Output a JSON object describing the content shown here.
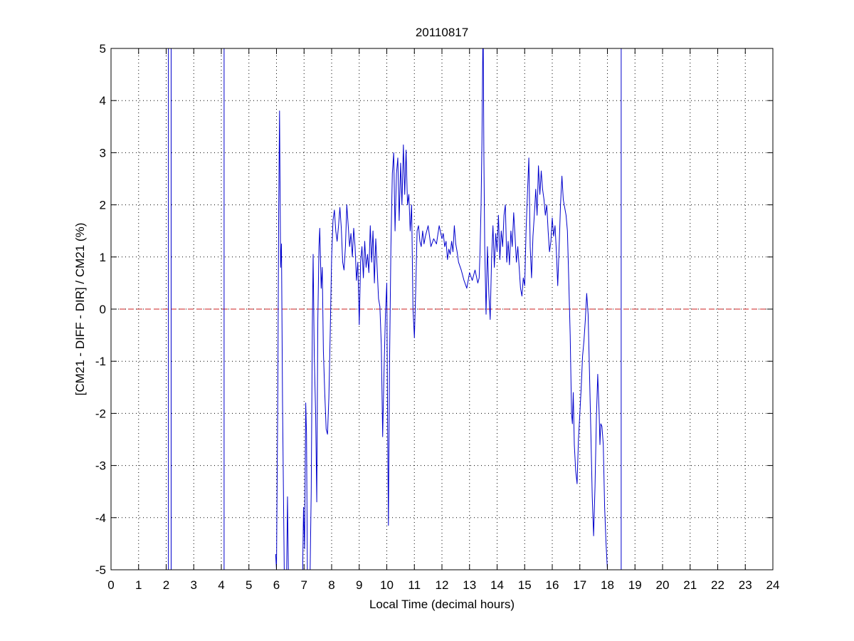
{
  "chart_data": {
    "type": "line",
    "title": "20110817",
    "xlabel": "Local Time (decimal hours)",
    "ylabel": "[CM21 - DIFF - DIR] / CM21 (%)",
    "xlim": [
      0,
      24
    ],
    "ylim": [
      -5,
      5
    ],
    "xticks": [
      "0",
      "1",
      "2",
      "3",
      "4",
      "5",
      "6",
      "7",
      "8",
      "9",
      "10",
      "11",
      "12",
      "13",
      "14",
      "15",
      "16",
      "17",
      "18",
      "19",
      "20",
      "21",
      "22",
      "23",
      "24"
    ],
    "yticks": [
      "5",
      "4",
      "3",
      "2",
      "1",
      "0",
      "-1",
      "-2",
      "-3",
      "-4",
      "-5"
    ],
    "grid": true,
    "grid_style": "dotted",
    "colors": {
      "series": "#0000cc",
      "reference": "#cc2222",
      "axes": "#000000",
      "grid": "#000000"
    },
    "reference_line": {
      "y": 0,
      "style": "dashed"
    },
    "vertical_spikes_x": [
      2.08,
      2.18,
      4.1,
      18.5
    ],
    "series": [
      {
        "points": [
          [
            5.97,
            -4.7
          ],
          [
            6.0,
            -5.0
          ],
          [
            6.05,
            -1.5
          ],
          [
            6.08,
            1.9
          ],
          [
            6.11,
            3.8
          ],
          [
            6.15,
            0.8
          ],
          [
            6.18,
            1.25
          ],
          [
            6.22,
            -1.8
          ],
          [
            6.28,
            -5.0
          ],
          [
            6.37,
            -5.0
          ],
          [
            6.4,
            -3.6
          ],
          [
            6.43,
            -5.0
          ],
          [
            6.95,
            -5.0
          ],
          [
            6.98,
            -3.8
          ],
          [
            7.02,
            -4.6
          ],
          [
            7.06,
            -1.8
          ],
          [
            7.09,
            -2.4
          ],
          [
            7.12,
            -5.0
          ],
          [
            7.22,
            -5.0
          ],
          [
            7.26,
            -3.5
          ],
          [
            7.3,
            -0.3
          ],
          [
            7.33,
            1.05
          ],
          [
            7.37,
            -0.9
          ],
          [
            7.42,
            -2.0
          ],
          [
            7.46,
            -3.7
          ],
          [
            7.5,
            -0.2
          ],
          [
            7.54,
            1.2
          ],
          [
            7.57,
            1.55
          ],
          [
            7.62,
            0.4
          ],
          [
            7.66,
            0.8
          ],
          [
            7.7,
            -0.8
          ],
          [
            7.75,
            -1.6
          ],
          [
            7.8,
            -2.3
          ],
          [
            7.85,
            -2.4
          ],
          [
            7.9,
            -1.7
          ],
          [
            7.95,
            -0.4
          ],
          [
            8.0,
            1.0
          ],
          [
            8.05,
            1.7
          ],
          [
            8.1,
            1.9
          ],
          [
            8.15,
            1.5
          ],
          [
            8.2,
            1.3
          ],
          [
            8.25,
            1.6
          ],
          [
            8.3,
            1.95
          ],
          [
            8.35,
            1.55
          ],
          [
            8.4,
            0.9
          ],
          [
            8.45,
            0.75
          ],
          [
            8.5,
            1.2
          ],
          [
            8.55,
            2.0
          ],
          [
            8.6,
            1.6
          ],
          [
            8.65,
            1.2
          ],
          [
            8.7,
            1.45
          ],
          [
            8.75,
            1.0
          ],
          [
            8.8,
            1.55
          ],
          [
            8.85,
            1.2
          ],
          [
            8.9,
            0.55
          ],
          [
            8.95,
            0.9
          ],
          [
            9.0,
            -0.3
          ],
          [
            9.05,
            0.9
          ],
          [
            9.1,
            1.2
          ],
          [
            9.15,
            0.6
          ],
          [
            9.2,
            1.3
          ],
          [
            9.25,
            0.8
          ],
          [
            9.3,
            1.05
          ],
          [
            9.35,
            0.7
          ],
          [
            9.4,
            1.6
          ],
          [
            9.45,
            0.9
          ],
          [
            9.5,
            1.5
          ],
          [
            9.55,
            0.5
          ],
          [
            9.6,
            1.35
          ],
          [
            9.65,
            0.8
          ],
          [
            9.7,
            0.2
          ],
          [
            9.75,
            0.05
          ],
          [
            9.8,
            -0.7
          ],
          [
            9.85,
            -2.45
          ],
          [
            9.9,
            -1.2
          ],
          [
            9.95,
            -0.1
          ],
          [
            10.0,
            0.5
          ],
          [
            10.03,
            -2.3
          ],
          [
            10.06,
            -4.15
          ],
          [
            10.1,
            -1.0
          ],
          [
            10.15,
            1.2
          ],
          [
            10.2,
            2.6
          ],
          [
            10.25,
            3.0
          ],
          [
            10.3,
            1.5
          ],
          [
            10.35,
            2.6
          ],
          [
            10.4,
            2.9
          ],
          [
            10.45,
            1.7
          ],
          [
            10.5,
            2.8
          ],
          [
            10.55,
            2.0
          ],
          [
            10.6,
            3.15
          ],
          [
            10.65,
            2.2
          ],
          [
            10.7,
            3.05
          ],
          [
            10.75,
            2.0
          ],
          [
            10.8,
            2.2
          ],
          [
            10.85,
            1.5
          ],
          [
            10.9,
            2.0
          ],
          [
            10.95,
            0.0
          ],
          [
            11.0,
            -0.55
          ],
          [
            11.05,
            0.4
          ],
          [
            11.1,
            1.5
          ],
          [
            11.15,
            1.6
          ],
          [
            11.2,
            1.3
          ],
          [
            11.25,
            1.2
          ],
          [
            11.3,
            1.5
          ],
          [
            11.35,
            1.25
          ],
          [
            11.4,
            1.4
          ],
          [
            11.5,
            1.6
          ],
          [
            11.6,
            1.2
          ],
          [
            11.7,
            1.35
          ],
          [
            11.8,
            1.25
          ],
          [
            11.9,
            1.6
          ],
          [
            12.0,
            1.35
          ],
          [
            12.05,
            1.45
          ],
          [
            12.1,
            1.2
          ],
          [
            12.15,
            1.3
          ],
          [
            12.2,
            0.95
          ],
          [
            12.25,
            1.15
          ],
          [
            12.3,
            1.05
          ],
          [
            12.35,
            1.3
          ],
          [
            12.4,
            1.1
          ],
          [
            12.45,
            1.6
          ],
          [
            12.5,
            1.25
          ],
          [
            12.55,
            1.1
          ],
          [
            12.6,
            0.9
          ],
          [
            12.7,
            0.75
          ],
          [
            12.8,
            0.55
          ],
          [
            12.9,
            0.4
          ],
          [
            13.0,
            0.7
          ],
          [
            13.1,
            0.55
          ],
          [
            13.2,
            0.75
          ],
          [
            13.3,
            0.5
          ],
          [
            13.35,
            0.6
          ],
          [
            13.38,
            1.1
          ],
          [
            13.42,
            2.0
          ],
          [
            13.45,
            3.2
          ],
          [
            13.48,
            5.0
          ],
          [
            13.5,
            5.0
          ],
          [
            13.52,
            3.0
          ],
          [
            13.55,
            1.2
          ],
          [
            13.6,
            -0.1
          ],
          [
            13.65,
            1.2
          ],
          [
            13.7,
            0.3
          ],
          [
            13.75,
            -0.2
          ],
          [
            13.8,
            1.0
          ],
          [
            13.85,
            1.6
          ],
          [
            13.9,
            0.8
          ],
          [
            13.95,
            1.45
          ],
          [
            14.0,
            1.1
          ],
          [
            14.05,
            1.8
          ],
          [
            14.1,
            0.95
          ],
          [
            14.15,
            1.5
          ],
          [
            14.2,
            1.2
          ],
          [
            14.25,
            1.8
          ],
          [
            14.3,
            2.0
          ],
          [
            14.35,
            0.9
          ],
          [
            14.4,
            1.3
          ],
          [
            14.45,
            0.85
          ],
          [
            14.5,
            1.5
          ],
          [
            14.55,
            1.2
          ],
          [
            14.6,
            1.85
          ],
          [
            14.65,
            1.4
          ],
          [
            14.7,
            0.9
          ],
          [
            14.75,
            1.2
          ],
          [
            14.8,
            0.8
          ],
          [
            14.85,
            0.4
          ],
          [
            14.9,
            0.25
          ],
          [
            14.95,
            0.6
          ],
          [
            15.0,
            0.45
          ],
          [
            15.05,
            1.5
          ],
          [
            15.1,
            2.2
          ],
          [
            15.15,
            2.9
          ],
          [
            15.2,
            1.2
          ],
          [
            15.25,
            0.6
          ],
          [
            15.3,
            1.4
          ],
          [
            15.35,
            1.8
          ],
          [
            15.4,
            2.3
          ],
          [
            15.45,
            1.8
          ],
          [
            15.5,
            2.75
          ],
          [
            15.55,
            2.2
          ],
          [
            15.6,
            2.65
          ],
          [
            15.65,
            2.3
          ],
          [
            15.7,
            2.1
          ],
          [
            15.75,
            1.8
          ],
          [
            15.8,
            2.0
          ],
          [
            15.85,
            1.5
          ],
          [
            15.9,
            1.1
          ],
          [
            15.95,
            1.3
          ],
          [
            16.0,
            1.75
          ],
          [
            16.05,
            1.4
          ],
          [
            16.1,
            1.6
          ],
          [
            16.15,
            1.1
          ],
          [
            16.2,
            0.45
          ],
          [
            16.25,
            1.2
          ],
          [
            16.3,
            2.0
          ],
          [
            16.35,
            2.55
          ],
          [
            16.4,
            2.1
          ],
          [
            16.5,
            1.8
          ],
          [
            16.55,
            1.5
          ],
          [
            16.6,
            0.5
          ],
          [
            16.65,
            -0.5
          ],
          [
            16.7,
            -2.0
          ],
          [
            16.73,
            -2.2
          ],
          [
            16.76,
            -1.6
          ],
          [
            16.8,
            -2.6
          ],
          [
            16.85,
            -3.1
          ],
          [
            16.9,
            -3.35
          ],
          [
            16.95,
            -2.5
          ],
          [
            17.0,
            -2.0
          ],
          [
            17.05,
            -1.5
          ],
          [
            17.1,
            -0.9
          ],
          [
            17.15,
            -0.6
          ],
          [
            17.2,
            -0.2
          ],
          [
            17.25,
            0.3
          ],
          [
            17.3,
            -0.1
          ],
          [
            17.35,
            -1.2
          ],
          [
            17.4,
            -2.4
          ],
          [
            17.45,
            -3.6
          ],
          [
            17.5,
            -4.35
          ],
          [
            17.55,
            -3.4
          ],
          [
            17.6,
            -2.1
          ],
          [
            17.65,
            -1.25
          ],
          [
            17.7,
            -2.0
          ],
          [
            17.73,
            -2.6
          ],
          [
            17.76,
            -2.2
          ],
          [
            17.8,
            -2.25
          ],
          [
            17.85,
            -2.6
          ],
          [
            17.9,
            -3.8
          ],
          [
            17.95,
            -4.5
          ],
          [
            18.0,
            -5.0
          ]
        ]
      }
    ]
  }
}
